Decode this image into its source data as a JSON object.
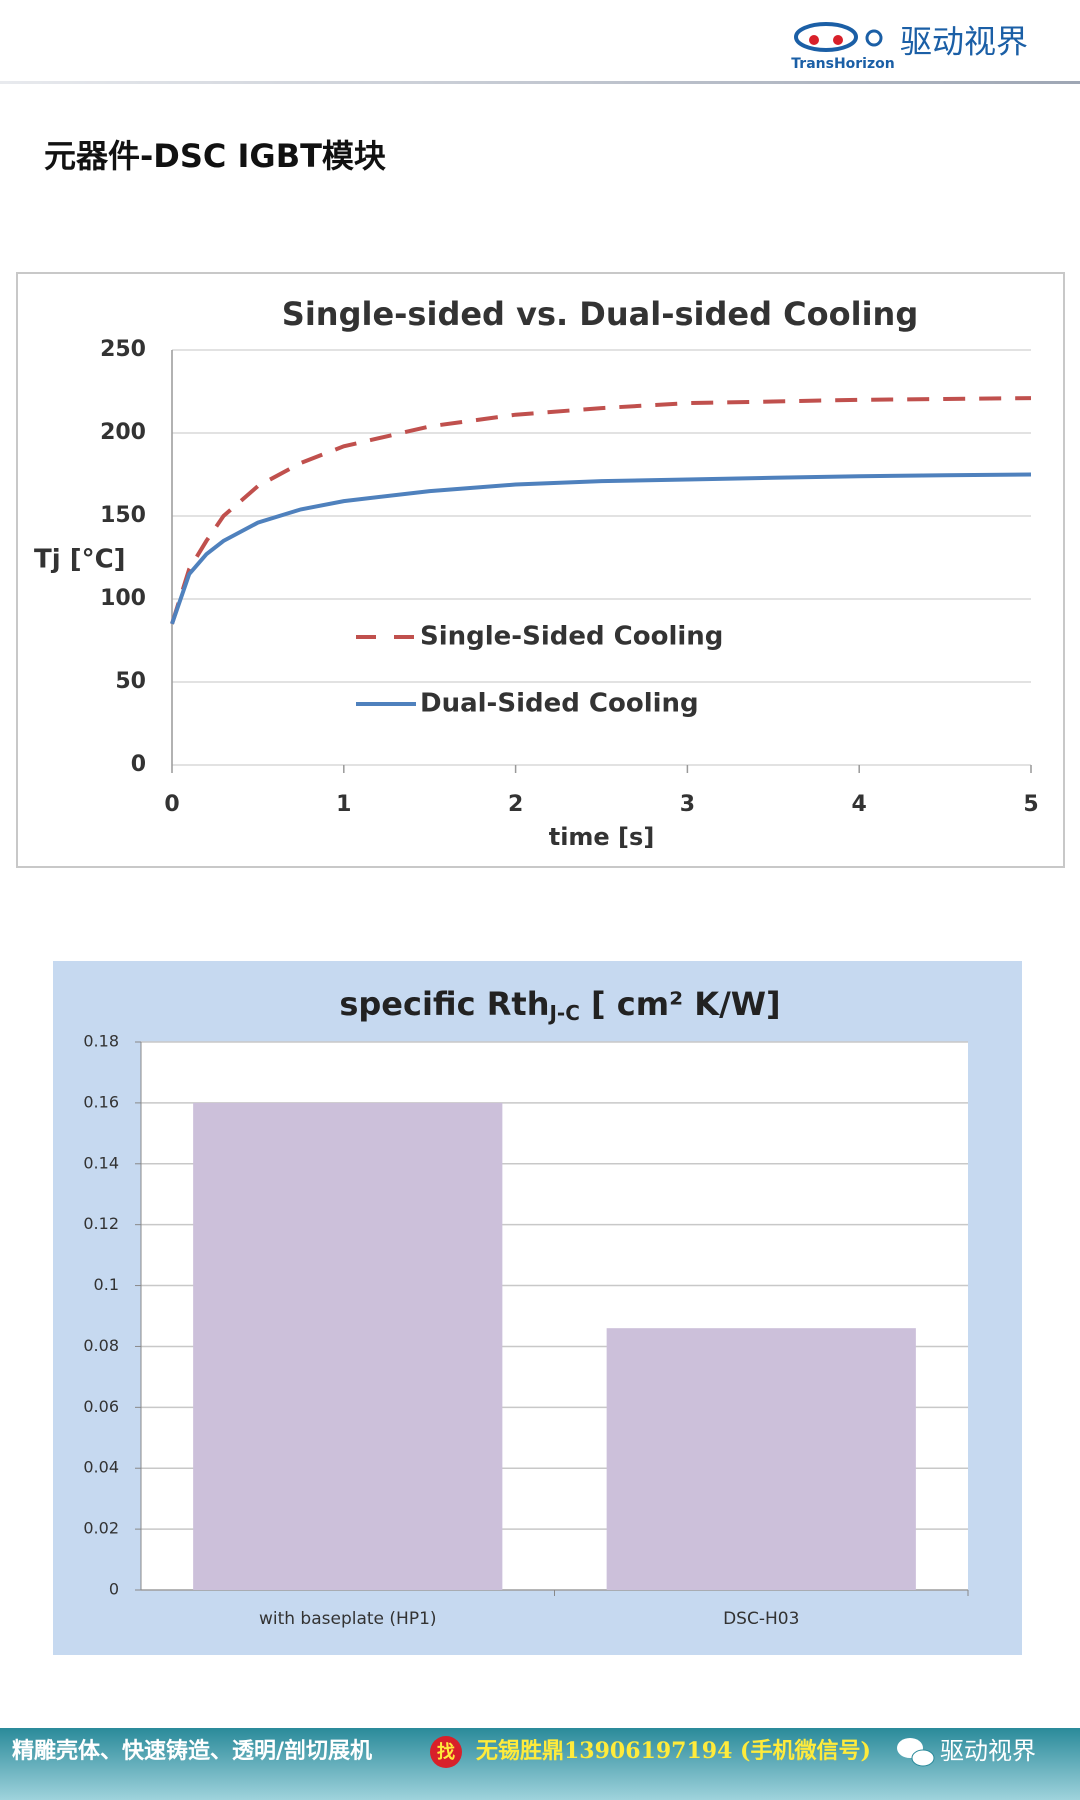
{
  "header": {
    "brand_en": "TransHorizon",
    "brand_cn": "驱动视界"
  },
  "page_title": "元器件-DSC IGBT模块",
  "chart_data": [
    {
      "type": "line",
      "title": "Single-sided vs. Dual-sided Cooling",
      "x_label": "time [s]",
      "y_label": "Tj [°C]",
      "x": [
        0,
        0.1,
        0.2,
        0.3,
        0.5,
        0.75,
        1,
        1.5,
        2,
        2.5,
        3,
        3.5,
        4,
        4.5,
        5
      ],
      "series": [
        {
          "name": "Single-Sided Cooling",
          "color": "#c0504d",
          "style": "dashed",
          "values": [
            85,
            118,
            135,
            150,
            168,
            182,
            192,
            204,
            211,
            215,
            218,
            219,
            220,
            220.5,
            221
          ]
        },
        {
          "name": "Dual-Sided Cooling",
          "color": "#4f81bd",
          "style": "solid",
          "values": [
            85,
            115,
            127,
            135,
            146,
            154,
            159,
            165,
            169,
            171,
            172,
            173,
            174,
            174.5,
            175
          ]
        }
      ],
      "xlim": [
        0,
        5
      ],
      "xticks": [
        0,
        1,
        2,
        3,
        4,
        5
      ],
      "ylim": [
        0,
        250
      ],
      "yticks": [
        0,
        50,
        100,
        150,
        200,
        250
      ],
      "grid": true,
      "legend": "center-left"
    },
    {
      "type": "bar",
      "title": "specific Rth",
      "title_sub": "J-C",
      "title_rest": " [ cm² K/W]",
      "categories": [
        "with baseplate (HP1)",
        "DSC-H03"
      ],
      "values": [
        0.16,
        0.086
      ],
      "color": "#ccc0da",
      "ylim": [
        0,
        0.18
      ],
      "yticks": [
        0,
        0.02,
        0.04,
        0.06,
        0.08,
        0.1,
        0.12,
        0.14,
        0.16,
        0.18
      ],
      "grid": true
    }
  ],
  "footer": {
    "text": "精雕壳体、快速铸造、透明/剖切展机",
    "badge": "找",
    "contact": "无锡胜鼎13906197194 (手机微信号)",
    "brand": "驱动视界"
  }
}
